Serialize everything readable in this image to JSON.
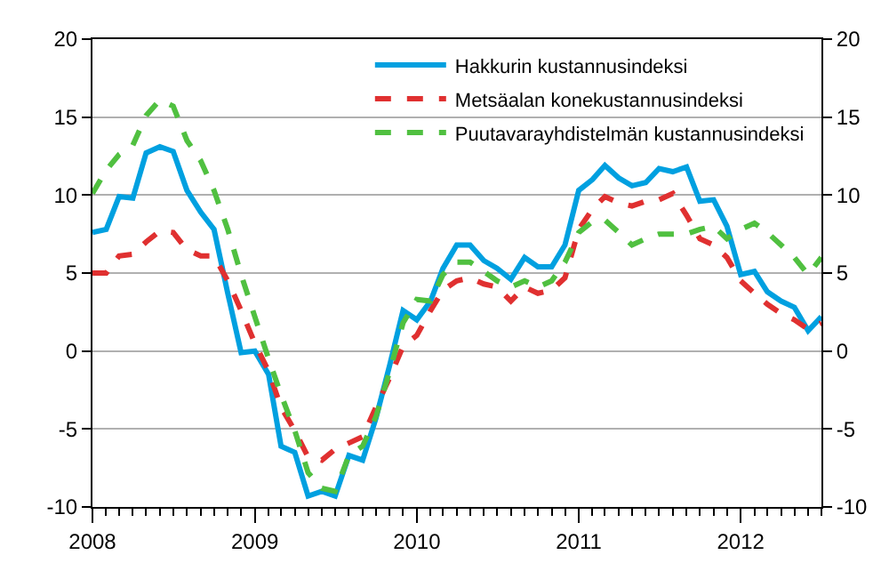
{
  "chart_data": {
    "type": "line",
    "x": [
      "2008-01",
      "2008-02",
      "2008-03",
      "2008-04",
      "2008-05",
      "2008-06",
      "2008-07",
      "2008-08",
      "2008-09",
      "2008-10",
      "2008-11",
      "2008-12",
      "2009-01",
      "2009-02",
      "2009-03",
      "2009-04",
      "2009-05",
      "2009-06",
      "2009-07",
      "2009-08",
      "2009-09",
      "2009-10",
      "2009-11",
      "2009-12",
      "2010-01",
      "2010-02",
      "2010-03",
      "2010-04",
      "2010-05",
      "2010-06",
      "2010-07",
      "2010-08",
      "2010-09",
      "2010-10",
      "2010-11",
      "2010-12",
      "2011-01",
      "2011-02",
      "2011-03",
      "2011-04",
      "2011-05",
      "2011-06",
      "2011-07",
      "2011-08",
      "2011-09",
      "2011-10",
      "2011-11",
      "2011-12",
      "2012-01",
      "2012-02",
      "2012-03",
      "2012-04",
      "2012-05",
      "2012-06",
      "2012-07"
    ],
    "series": [
      {
        "name": "Hakkurin kustannusindeksi",
        "color": "#00a0e0",
        "line_style": "solid",
        "values": [
          7.6,
          7.8,
          9.9,
          9.8,
          12.7,
          13.1,
          12.8,
          10.3,
          8.9,
          7.8,
          3.7,
          -0.1,
          0,
          -1.5,
          -6.1,
          -6.5,
          -9.3,
          -9.0,
          -9.3,
          -6.7,
          -7.0,
          -4.3,
          -0.9,
          2.6,
          2.0,
          3.2,
          5.3,
          6.8,
          6.8,
          5.8,
          5.3,
          4.6,
          6.0,
          5.4,
          5.4,
          6.8,
          10.3,
          11.0,
          11.9,
          11.1,
          10.6,
          10.8,
          11.7,
          11.5,
          11.8,
          9.6,
          9.7,
          8.0,
          4.9,
          5.1,
          3.8,
          3.2,
          2.8,
          1.3,
          2.2
        ]
      },
      {
        "name": "Metsäalan konekustannusindeksi",
        "color": "#e03030",
        "line_style": "dashed",
        "values": [
          5.0,
          5.0,
          6.1,
          6.2,
          7.0,
          7.7,
          7.6,
          6.5,
          6.1,
          6.1,
          4.5,
          2.6,
          0.5,
          -1.3,
          -3.6,
          -5.1,
          -6.8,
          -7.0,
          -6.3,
          -5.9,
          -5.5,
          -3.6,
          -1.7,
          0.3,
          1.0,
          2.6,
          3.9,
          4.5,
          4.7,
          4.3,
          4.1,
          3.2,
          4.1,
          3.7,
          3.9,
          4.7,
          7.8,
          9.1,
          9.9,
          9.5,
          9.3,
          9.6,
          9.7,
          10.1,
          8.7,
          7.2,
          6.8,
          6.0,
          4.5,
          3.7,
          3.0,
          2.4,
          2.0,
          1.4,
          1.8
        ]
      },
      {
        "name": "Puutavarayhdistelmän kustannusindeksi",
        "color": "#50c040",
        "line_style": "dashed",
        "values": [
          10.1,
          11.6,
          12.6,
          13.2,
          15.1,
          16.1,
          15.7,
          13.5,
          12.2,
          10.3,
          7.8,
          4.9,
          2.2,
          -0.5,
          -2.8,
          -5.1,
          -7.8,
          -8.8,
          -9.0,
          -6.7,
          -6.1,
          -4.2,
          -1.3,
          1.8,
          3.3,
          3.2,
          4.9,
          5.7,
          5.7,
          5.1,
          4.5,
          4.1,
          4.5,
          4.1,
          4.5,
          5.7,
          7.6,
          8.3,
          8.4,
          7.6,
          6.8,
          7.2,
          7.5,
          7.5,
          7.5,
          7.8,
          8.0,
          7.2,
          7.8,
          8.2,
          7.6,
          6.8,
          6.0,
          4.9,
          6.0
        ]
      }
    ],
    "xlim": [
      "2008-01",
      "2012-07"
    ],
    "xticks": [
      {
        "value": "2008-01",
        "label": "2008"
      },
      {
        "value": "2009-01",
        "label": "2009"
      },
      {
        "value": "2010-01",
        "label": "2010"
      },
      {
        "value": "2011-01",
        "label": "2011"
      },
      {
        "value": "2012-01",
        "label": "2012"
      }
    ],
    "ylim": [
      -10,
      20
    ],
    "yticks": [
      -10,
      -5,
      0,
      5,
      10,
      15,
      20
    ],
    "y2lim": [
      -10,
      20
    ],
    "y2ticks": [
      -10,
      -5,
      0,
      5,
      10,
      15,
      20
    ],
    "grid": "y",
    "legend": "top right",
    "marker": "none"
  }
}
